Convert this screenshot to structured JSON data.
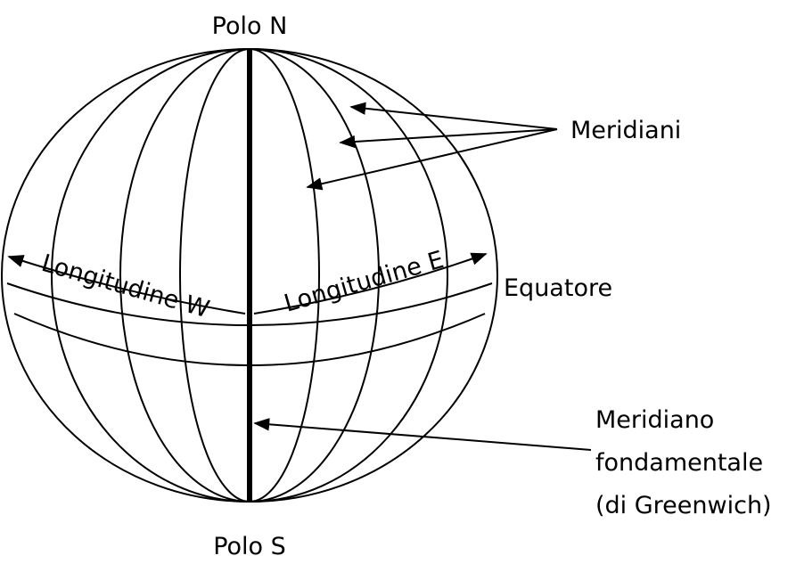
{
  "labels": {
    "north_pole": "Polo N",
    "south_pole": "Polo S",
    "meridians": "Meridiani",
    "longitude_west": "Longitudine W",
    "longitude_east": "Longitudine E",
    "equator": "Equatore",
    "prime_meridian": [
      "Meridiano",
      "fondamentale",
      "(di Greenwich)"
    ]
  }
}
